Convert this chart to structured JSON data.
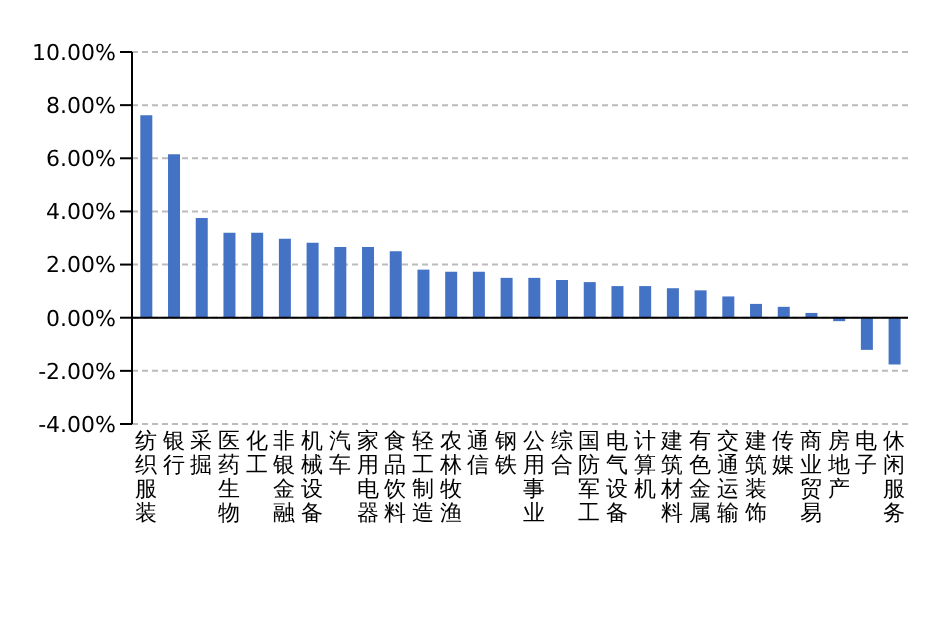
{
  "chart_data": {
    "type": "bar",
    "categories": [
      "纺织服装",
      "银行",
      "采掘",
      "医药生物",
      "化工",
      "非银金融",
      "机械设备",
      "汽车",
      "家用电器",
      "食品饮料",
      "轻工制造",
      "农林牧渔",
      "通信",
      "钢铁",
      "公用事业",
      "综合",
      "国防军工",
      "电气设备",
      "计算机",
      "建筑材料",
      "有色金属",
      "交通运输",
      "建筑装饰",
      "传媒",
      "商业贸易",
      "房地产",
      "电子",
      "休闲服务"
    ],
    "values": [
      7.62,
      6.15,
      3.75,
      3.2,
      3.2,
      2.97,
      2.82,
      2.66,
      2.66,
      2.5,
      1.81,
      1.73,
      1.73,
      1.5,
      1.5,
      1.42,
      1.34,
      1.19,
      1.19,
      1.11,
      1.03,
      0.8,
      0.52,
      0.41,
      0.18,
      -0.13,
      -1.21,
      -1.76
    ],
    "color": "#4472c4",
    "ylim": [
      -4,
      10
    ],
    "yticks": [
      {
        "value": -4,
        "label": "-4.00%"
      },
      {
        "value": -2,
        "label": "-2.00%"
      },
      {
        "value": 0,
        "label": "0.00%"
      },
      {
        "value": 2,
        "label": "2.00%"
      },
      {
        "value": 4,
        "label": "4.00%"
      },
      {
        "value": 6,
        "label": "6.00%"
      },
      {
        "value": 8,
        "label": "8.00%"
      },
      {
        "value": 10,
        "label": "10.00%"
      }
    ],
    "grid": "y"
  }
}
